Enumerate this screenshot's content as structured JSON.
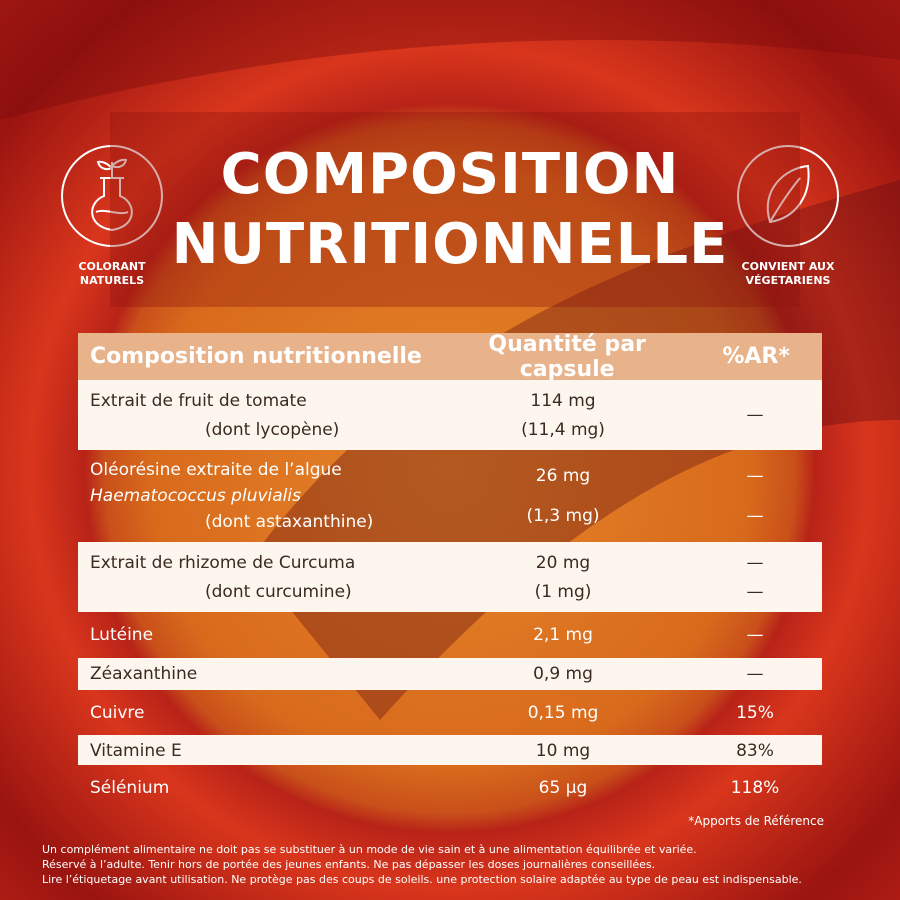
{
  "header": {
    "title": [
      "COMPOSITION",
      "NUTRITIONNELLE"
    ]
  },
  "badges": [
    {
      "lines": [
        "COLORANT",
        "NATURELS"
      ]
    },
    {
      "lines": [
        "CONVIENT AUX",
        "VÉGETARIENS"
      ]
    }
  ],
  "table": {
    "header": [
      "Composition nutritionnelle",
      "Quantité par capsule",
      "%AR*"
    ],
    "rows": [
      [
        [
          "Extrait de fruit de tomate",
          "(dont lycopène)"
        ],
        [
          "114 mg",
          "(11,4 mg)"
        ],
        [
          "—"
        ]
      ],
      [
        [
          "Oléorésine extraite de l’algue",
          "Haematococcus pluvialis",
          "(dont  astaxanthine)"
        ],
        [
          "26 mg",
          "(1,3 mg)"
        ],
        [
          "—",
          "—"
        ]
      ],
      [
        [
          "Extrait de rhizome de Curcuma",
          "(dont curcumine)"
        ],
        [
          "20 mg",
          "(1 mg)"
        ],
        [
          "—",
          "—"
        ]
      ],
      [
        [
          "Lutéine"
        ],
        [
          "2,1 mg"
        ],
        [
          "—"
        ]
      ],
      [
        [
          "Zéaxanthine"
        ],
        [
          "0,9 mg"
        ],
        [
          "—"
        ]
      ],
      [
        [
          "Cuivre"
        ],
        [
          "0,15 mg"
        ],
        [
          "15%"
        ]
      ],
      [
        [
          "Vitamine E"
        ],
        [
          "10 mg"
        ],
        [
          "83%"
        ]
      ],
      [
        [
          "Sélénium"
        ],
        [
          "65 µg"
        ],
        [
          "118%"
        ]
      ]
    ]
  },
  "footnote": "*Apports de Référence",
  "disclaimer": [
    "Un complément alimentaire ne doit pas se substituer à un mode de vie sain et à une alimentation équilibrée et variée.",
    "Réservé à l’adulte. Tenir hors de portée des jeunes enfants. Ne pas dépasser les doses journalières conseillées.",
    "Lire l’étiquetage avant utilisation. Ne protège pas des coups de soleils. une protection solaire adaptée au type de peau est indispensable."
  ]
}
